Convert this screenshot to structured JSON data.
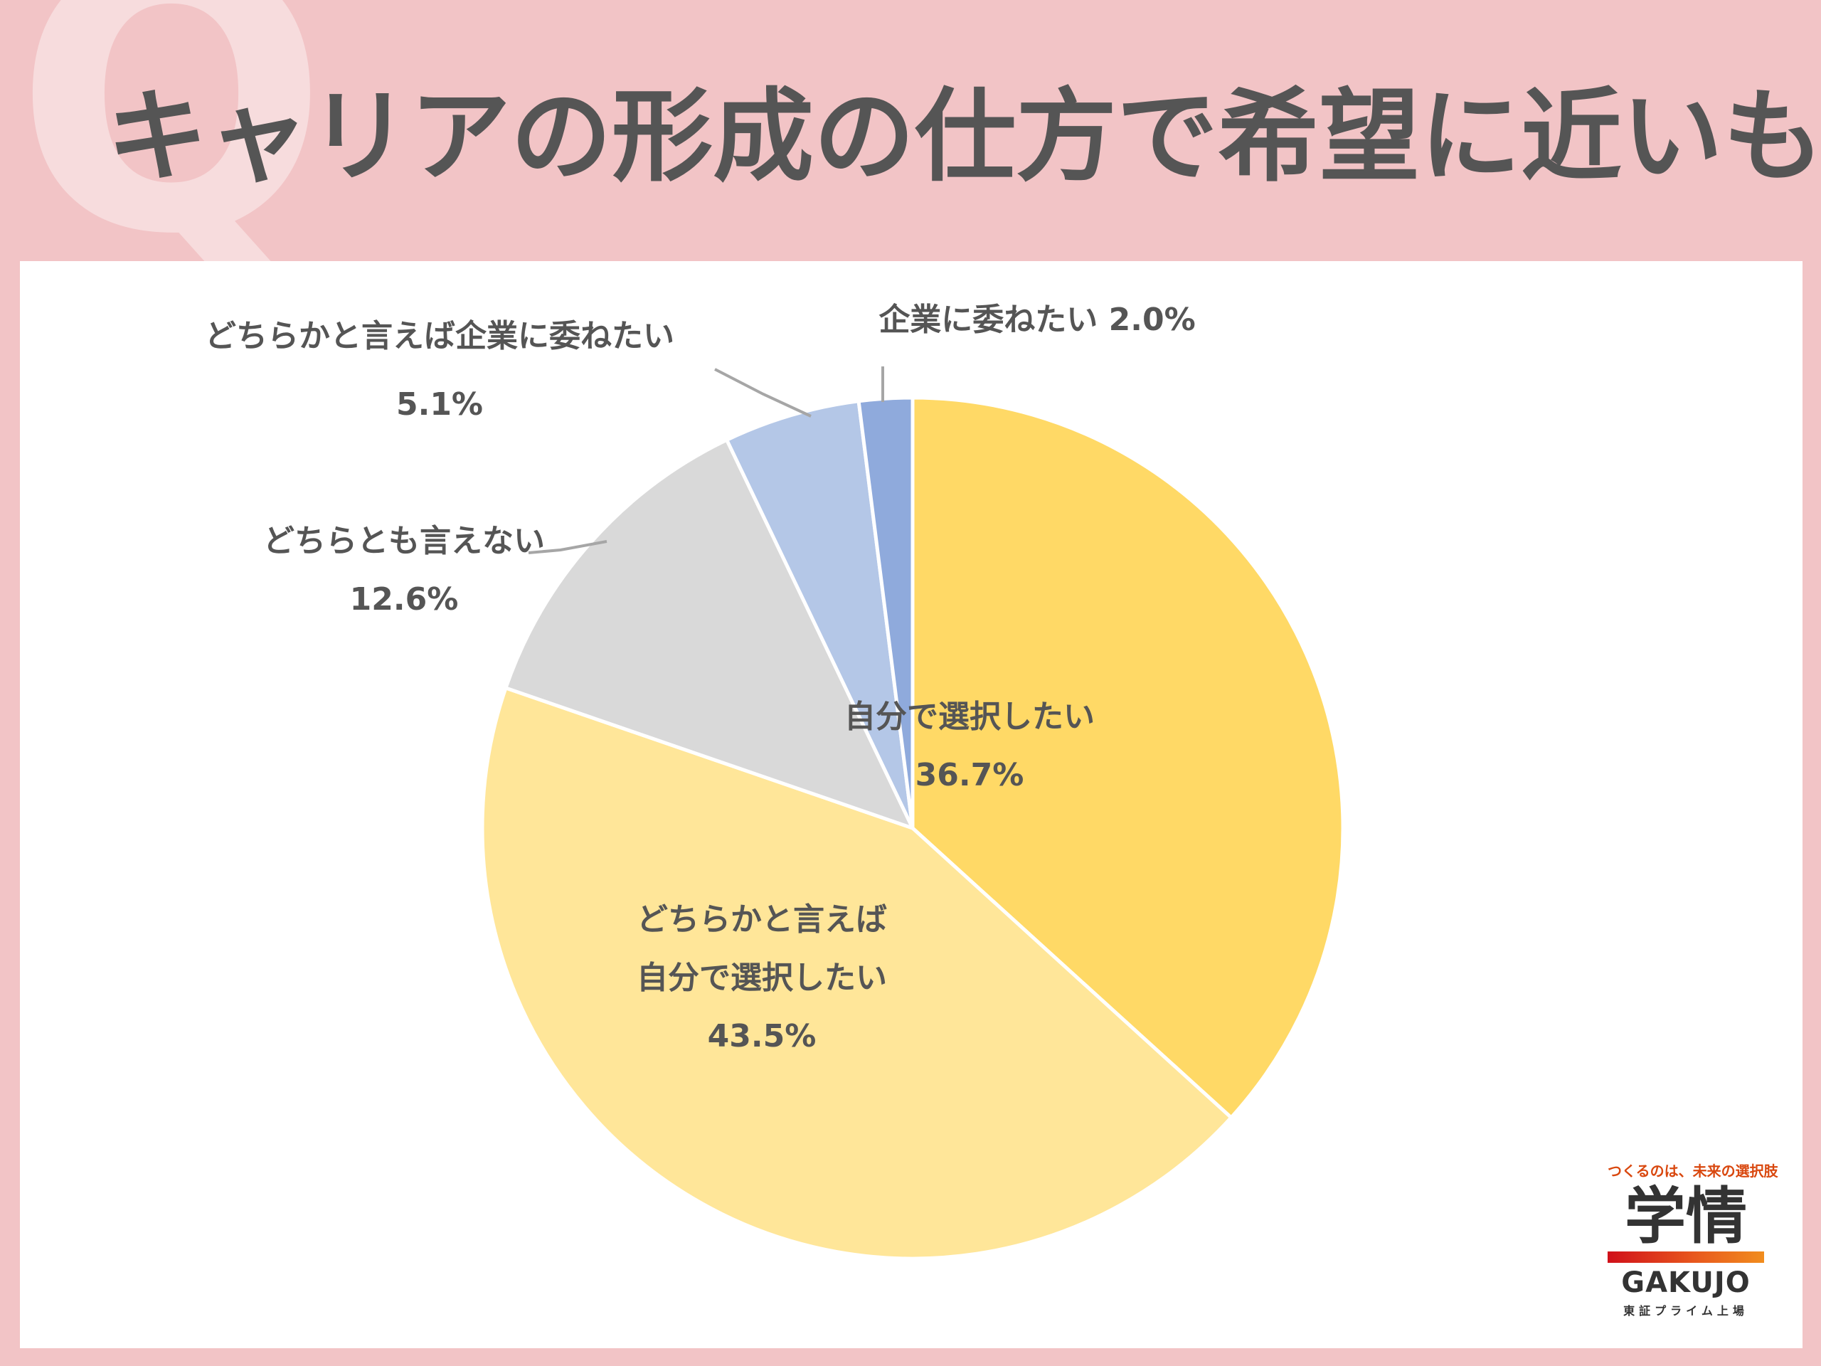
{
  "header": {
    "q_mark": "Q",
    "title": "キャリアの形成の仕方で希望に近いもの"
  },
  "chart_data": {
    "type": "pie",
    "start_angle_deg": 0,
    "direction": "clockwise",
    "slices": [
      {
        "label_lines": [
          "自分で選択したい"
        ],
        "value_label": "36.7%",
        "value": 36.7,
        "color": "#ffd966"
      },
      {
        "label_lines": [
          "どちらかと言えば",
          "自分で選択したい"
        ],
        "value_label": "43.5%",
        "value": 43.5,
        "color": "#ffe699"
      },
      {
        "label_lines": [
          "どちらとも言えない"
        ],
        "value_label": "12.6%",
        "value": 12.6,
        "color": "#d9d9d9"
      },
      {
        "label_lines": [
          "どちらかと言えば企業に委ねたい"
        ],
        "value_label": "5.1%",
        "value": 5.1,
        "color": "#b4c7e7"
      },
      {
        "label_lines": [
          "企業に委ねたい 2.0%"
        ],
        "value_label": "",
        "value": 2.0,
        "color": "#8faadc"
      }
    ],
    "legend": "none"
  },
  "logo": {
    "tagline": "つくるのは、未来の選択肢",
    "kanji": "学情",
    "roman": "GAKUJO",
    "listing": "東証プライム上場"
  }
}
